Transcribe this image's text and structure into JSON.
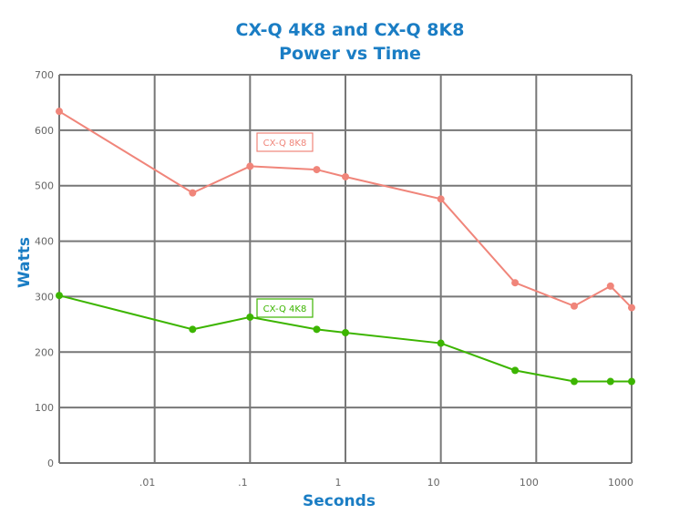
{
  "chart_data": {
    "type": "line",
    "title": "CX-Q 4K8 and CX-Q 8K8",
    "subtitle": "Power vs Time",
    "xlabel": "Seconds",
    "ylabel": "Watts",
    "x_scale": "log",
    "xlim": [
      0.001,
      1000
    ],
    "ylim": [
      0,
      700
    ],
    "grid": true,
    "x_ticks": [
      {
        "value": 0.01,
        "label": ".01"
      },
      {
        "value": 0.1,
        "label": ".1"
      },
      {
        "value": 1,
        "label": "1"
      },
      {
        "value": 10,
        "label": "10"
      },
      {
        "value": 100,
        "label": "100"
      },
      {
        "value": 1000,
        "label": "1000"
      }
    ],
    "y_ticks": [
      0,
      100,
      200,
      300,
      400,
      500,
      600,
      700
    ],
    "x": [
      0.001,
      0.025,
      0.1,
      0.5,
      1,
      10,
      60,
      250,
      600,
      1000
    ],
    "series": [
      {
        "name": "CX-Q 8K8",
        "color": "#f0857a",
        "values": [
          634,
          487,
          535,
          529,
          516,
          476,
          325,
          283,
          319,
          280
        ]
      },
      {
        "name": "CX-Q 4K8",
        "color": "#3cb500",
        "values": [
          302,
          241,
          263,
          241,
          235,
          216,
          167,
          147,
          147,
          147
        ]
      }
    ]
  }
}
